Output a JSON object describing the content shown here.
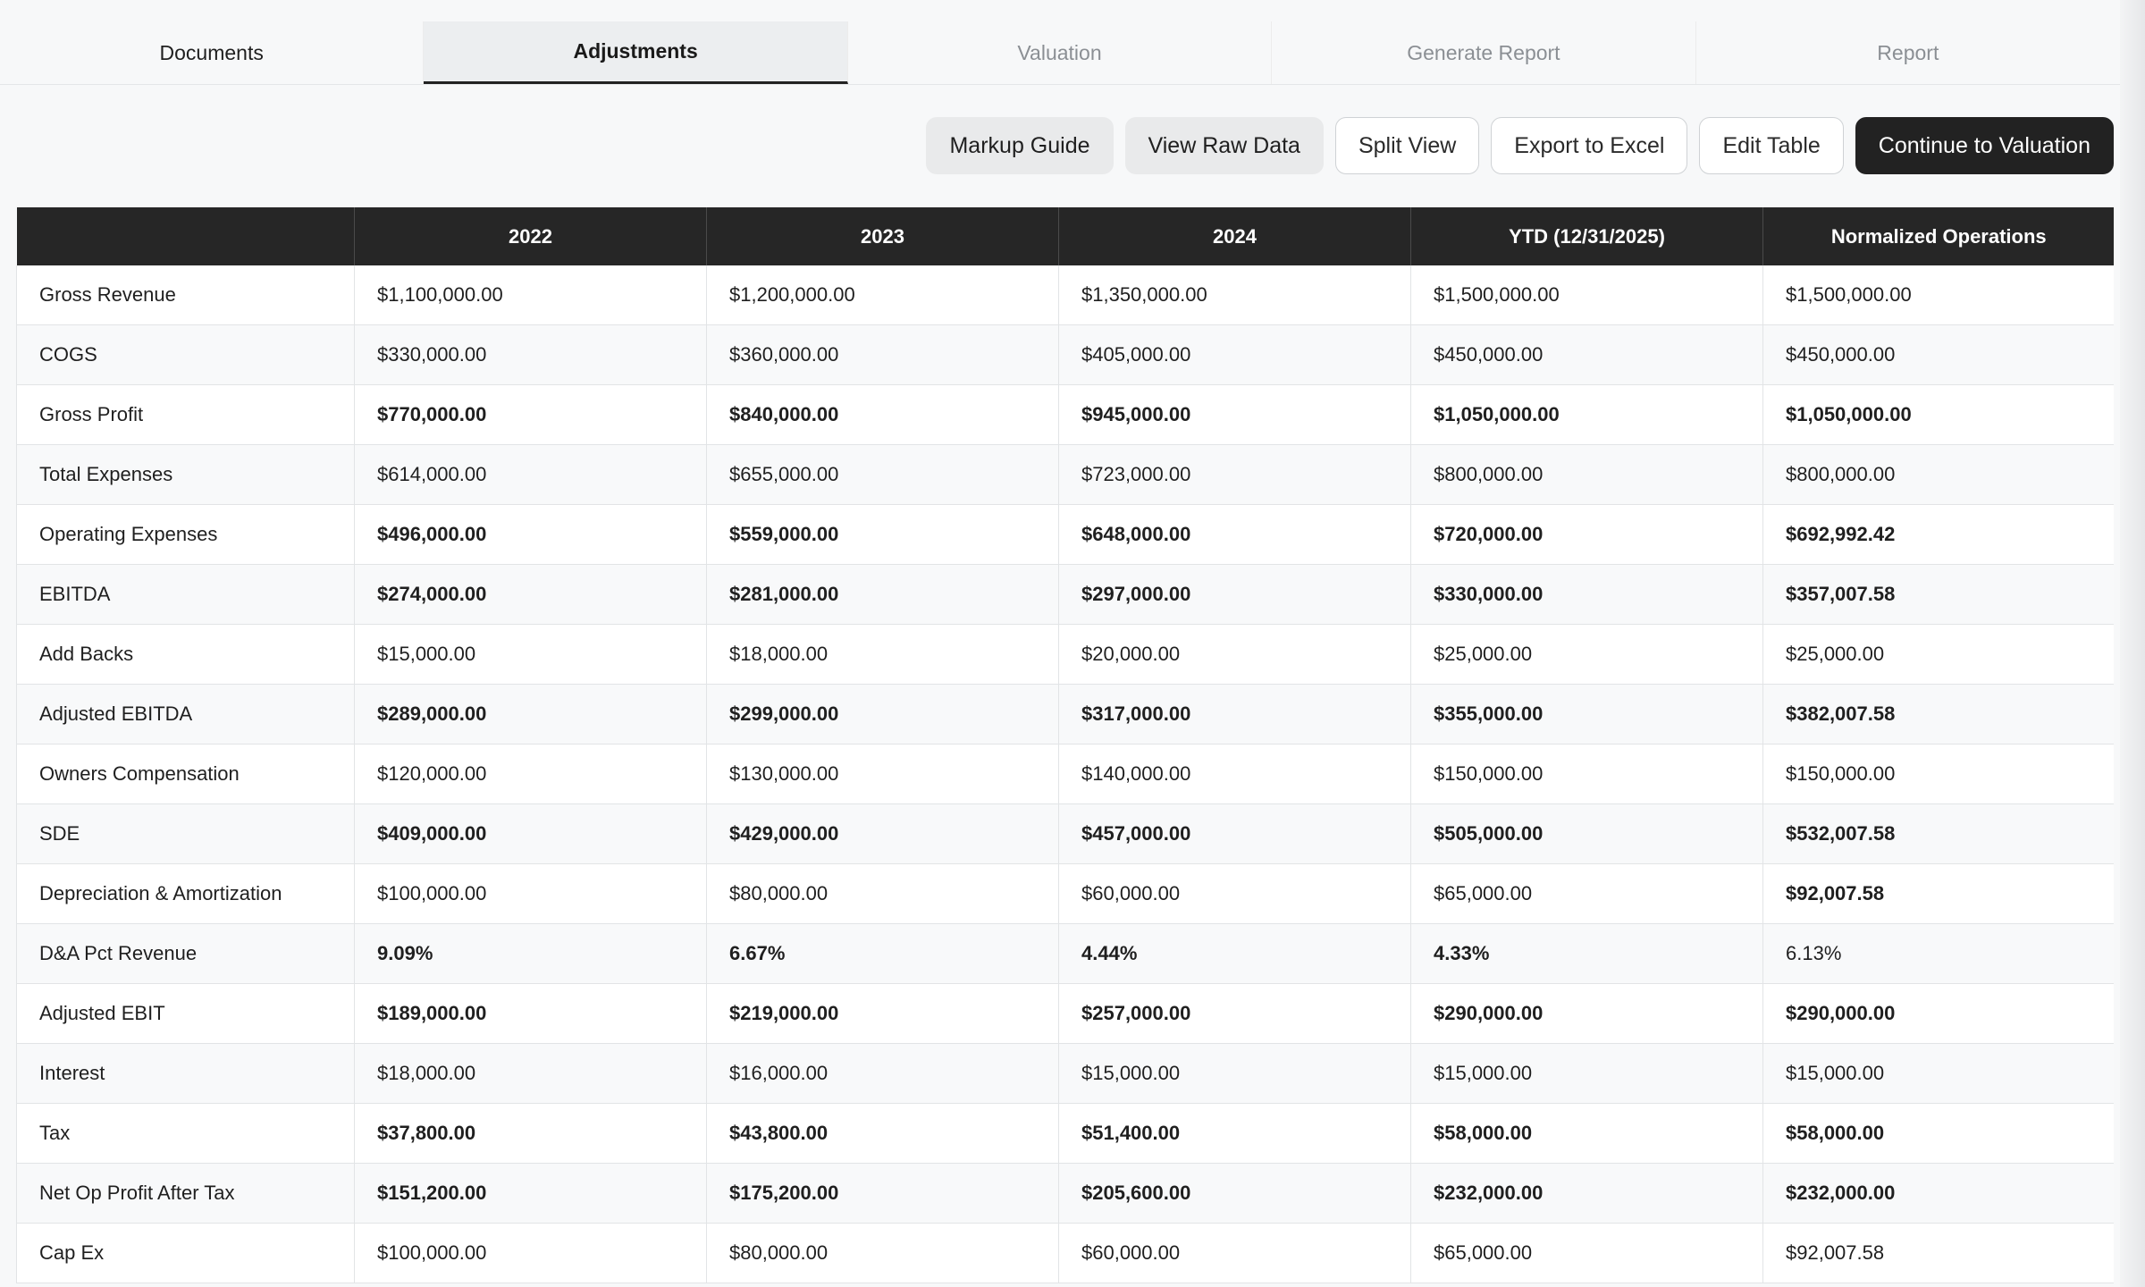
{
  "tabs": [
    {
      "label": "Documents",
      "state": "done"
    },
    {
      "label": "Adjustments",
      "state": "active"
    },
    {
      "label": "Valuation",
      "state": "inactive"
    },
    {
      "label": "Generate Report",
      "state": "inactive"
    },
    {
      "label": "Report",
      "state": "inactive"
    }
  ],
  "toolbar": {
    "markup_guide": "Markup Guide",
    "view_raw_data": "View Raw Data",
    "split_view": "Split View",
    "export_to_excel": "Export to Excel",
    "edit_table": "Edit Table",
    "continue_to_valuation": "Continue to Valuation"
  },
  "table": {
    "headers": [
      "",
      "2022",
      "2023",
      "2024",
      "YTD (12/31/2025)",
      "Normalized Operations"
    ],
    "rows": [
      {
        "label": "Gross Revenue",
        "values": [
          "$1,100,000.00",
          "$1,200,000.00",
          "$1,350,000.00",
          "$1,500,000.00",
          "$1,500,000.00"
        ],
        "bold": [
          false,
          false,
          false,
          false,
          false
        ]
      },
      {
        "label": "COGS",
        "values": [
          "$330,000.00",
          "$360,000.00",
          "$405,000.00",
          "$450,000.00",
          "$450,000.00"
        ],
        "bold": [
          false,
          false,
          false,
          false,
          false
        ]
      },
      {
        "label": "Gross Profit",
        "values": [
          "$770,000.00",
          "$840,000.00",
          "$945,000.00",
          "$1,050,000.00",
          "$1,050,000.00"
        ],
        "bold": [
          true,
          true,
          true,
          true,
          true
        ]
      },
      {
        "label": "Total Expenses",
        "values": [
          "$614,000.00",
          "$655,000.00",
          "$723,000.00",
          "$800,000.00",
          "$800,000.00"
        ],
        "bold": [
          false,
          false,
          false,
          false,
          false
        ]
      },
      {
        "label": "Operating Expenses",
        "values": [
          "$496,000.00",
          "$559,000.00",
          "$648,000.00",
          "$720,000.00",
          "$692,992.42"
        ],
        "bold": [
          true,
          true,
          true,
          true,
          true
        ]
      },
      {
        "label": "EBITDA",
        "values": [
          "$274,000.00",
          "$281,000.00",
          "$297,000.00",
          "$330,000.00",
          "$357,007.58"
        ],
        "bold": [
          true,
          true,
          true,
          true,
          true
        ]
      },
      {
        "label": "Add Backs",
        "values": [
          "$15,000.00",
          "$18,000.00",
          "$20,000.00",
          "$25,000.00",
          "$25,000.00"
        ],
        "bold": [
          false,
          false,
          false,
          false,
          false
        ]
      },
      {
        "label": "Adjusted EBITDA",
        "values": [
          "$289,000.00",
          "$299,000.00",
          "$317,000.00",
          "$355,000.00",
          "$382,007.58"
        ],
        "bold": [
          true,
          true,
          true,
          true,
          true
        ]
      },
      {
        "label": "Owners Compensation",
        "values": [
          "$120,000.00",
          "$130,000.00",
          "$140,000.00",
          "$150,000.00",
          "$150,000.00"
        ],
        "bold": [
          false,
          false,
          false,
          false,
          false
        ]
      },
      {
        "label": "SDE",
        "values": [
          "$409,000.00",
          "$429,000.00",
          "$457,000.00",
          "$505,000.00",
          "$532,007.58"
        ],
        "bold": [
          true,
          true,
          true,
          true,
          true
        ]
      },
      {
        "label": "Depreciation & Amortization",
        "values": [
          "$100,000.00",
          "$80,000.00",
          "$60,000.00",
          "$65,000.00",
          "$92,007.58"
        ],
        "bold": [
          false,
          false,
          false,
          false,
          true
        ]
      },
      {
        "label": "D&A Pct Revenue",
        "values": [
          "9.09%",
          "6.67%",
          "4.44%",
          "4.33%",
          "6.13%"
        ],
        "bold": [
          true,
          true,
          true,
          true,
          false
        ]
      },
      {
        "label": "Adjusted EBIT",
        "values": [
          "$189,000.00",
          "$219,000.00",
          "$257,000.00",
          "$290,000.00",
          "$290,000.00"
        ],
        "bold": [
          true,
          true,
          true,
          true,
          true
        ]
      },
      {
        "label": "Interest",
        "values": [
          "$18,000.00",
          "$16,000.00",
          "$15,000.00",
          "$15,000.00",
          "$15,000.00"
        ],
        "bold": [
          false,
          false,
          false,
          false,
          false
        ]
      },
      {
        "label": "Tax",
        "values": [
          "$37,800.00",
          "$43,800.00",
          "$51,400.00",
          "$58,000.00",
          "$58,000.00"
        ],
        "bold": [
          true,
          true,
          true,
          true,
          true
        ]
      },
      {
        "label": "Net Op Profit After Tax",
        "values": [
          "$151,200.00",
          "$175,200.00",
          "$205,600.00",
          "$232,000.00",
          "$232,000.00"
        ],
        "bold": [
          true,
          true,
          true,
          true,
          true
        ]
      },
      {
        "label": "Cap Ex",
        "values": [
          "$100,000.00",
          "$80,000.00",
          "$60,000.00",
          "$65,000.00",
          "$92,007.58"
        ],
        "bold": [
          false,
          false,
          false,
          false,
          false
        ]
      }
    ]
  }
}
